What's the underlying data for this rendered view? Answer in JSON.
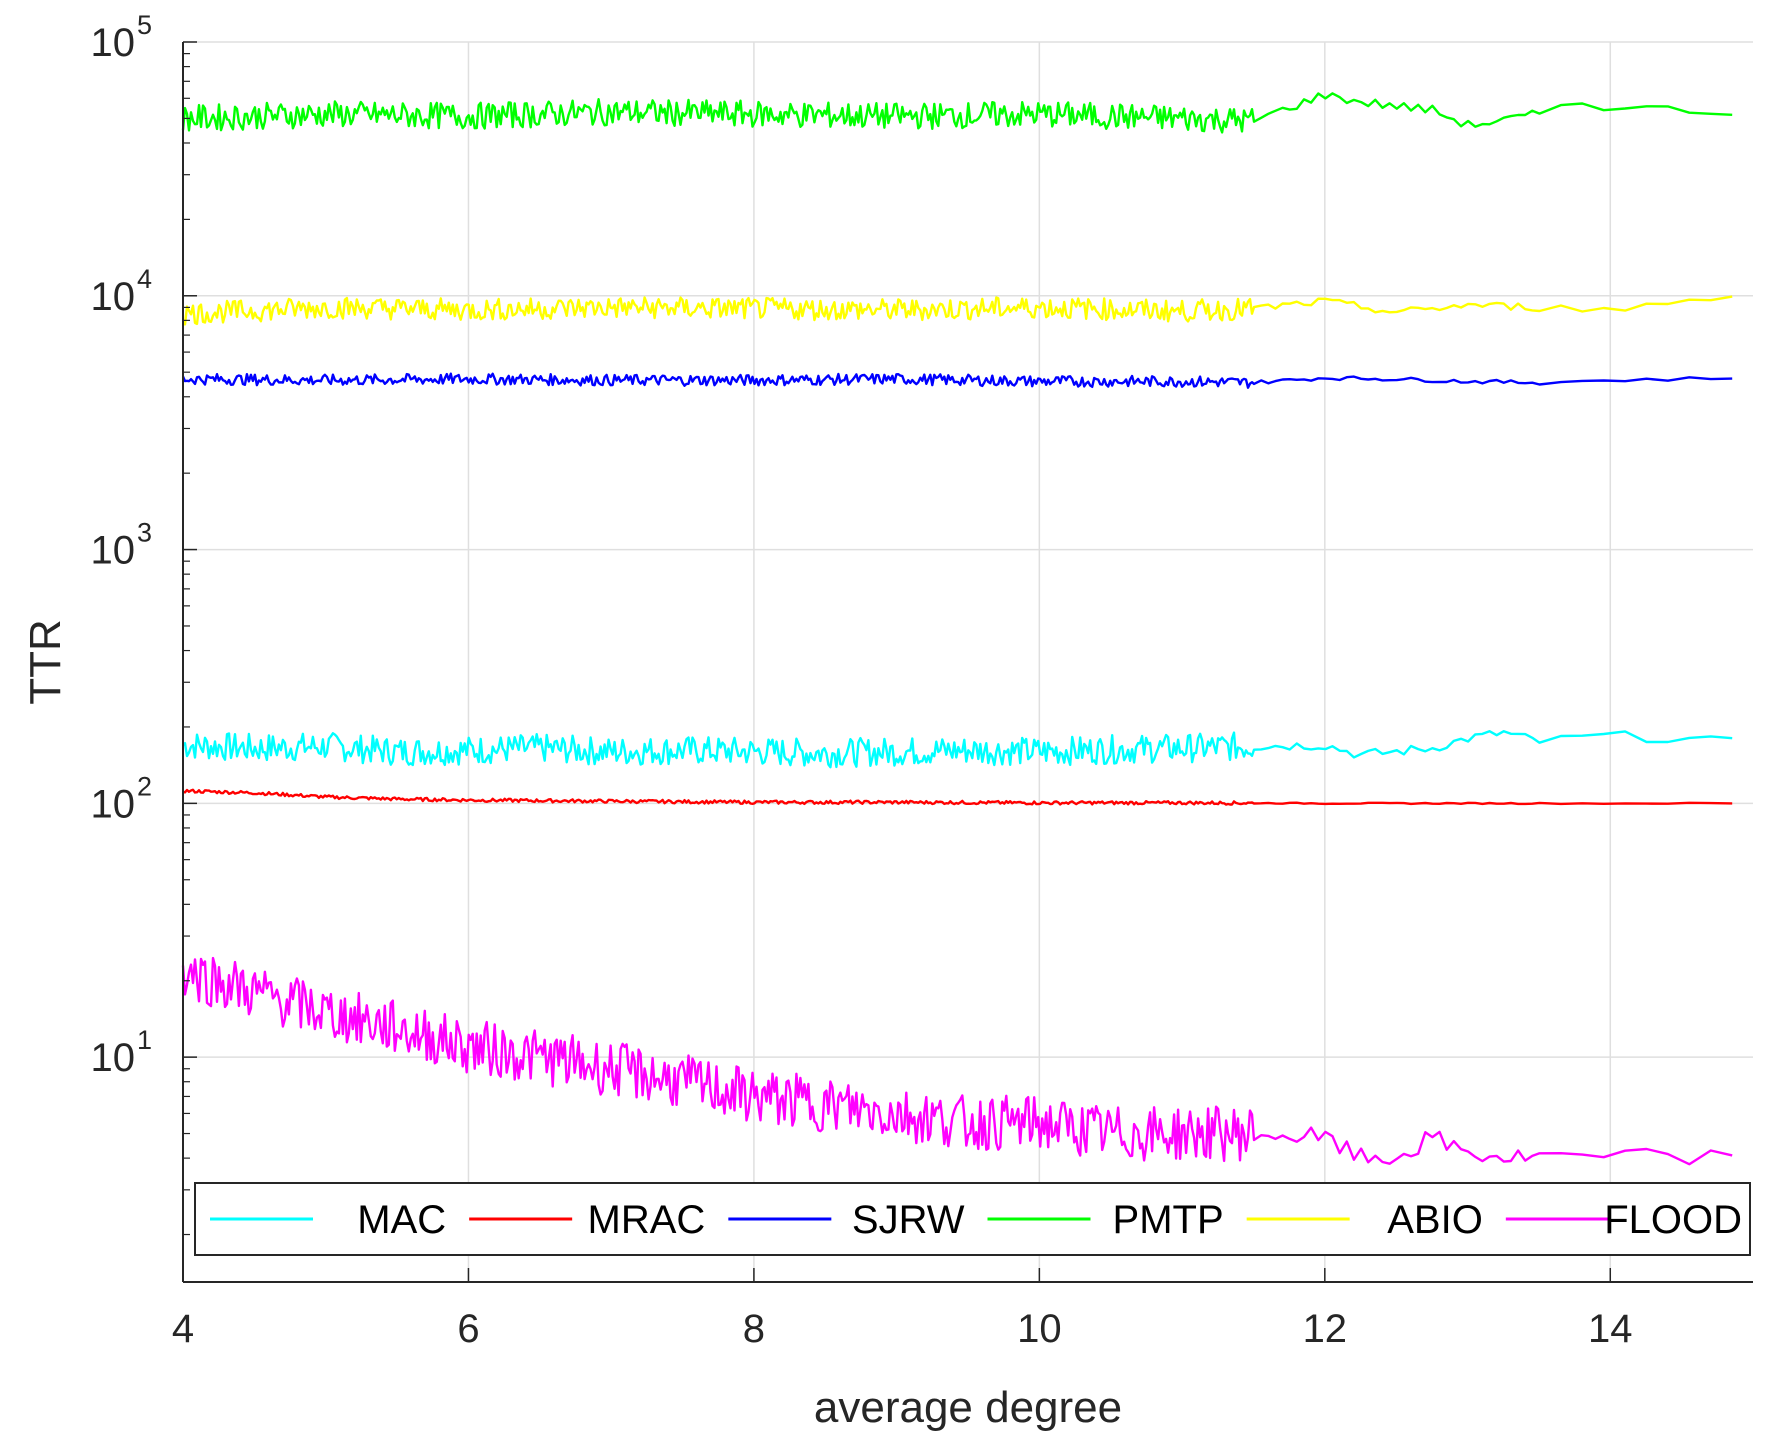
{
  "chart_data": {
    "type": "line",
    "title": "",
    "xlabel": "average degree",
    "ylabel": "TTR",
    "xlim": [
      4,
      15
    ],
    "ylim": [
      1.3,
      100000
    ],
    "yscale": "log",
    "grid": true,
    "legend": {
      "placement": "bottom",
      "orientation": "horizontal"
    },
    "x_ticks": [
      "4",
      "6",
      "8",
      "10",
      "12",
      "14"
    ],
    "x_tick_values": [
      4,
      6,
      8,
      10,
      12,
      14
    ],
    "y_ticks": [
      {
        "value": 10,
        "base": "10",
        "exp": "1"
      },
      {
        "value": 100,
        "base": "10",
        "exp": "2"
      },
      {
        "value": 1000,
        "base": "10",
        "exp": "3"
      },
      {
        "value": 10000,
        "base": "10",
        "exp": "4"
      },
      {
        "value": 100000,
        "base": "10",
        "exp": "5"
      }
    ],
    "series": [
      {
        "name": "MAC",
        "color": "#00ffff",
        "x": [
          4,
          4.5,
          5,
          5.5,
          6,
          6.5,
          7,
          7.5,
          8,
          8.5,
          9,
          9.5,
          10,
          10.5,
          11,
          11.5,
          12,
          12.25,
          12.5,
          12.75,
          13,
          13.25,
          13.5,
          14,
          14.5,
          15
        ],
        "y": [
          170,
          165,
          168,
          160,
          162,
          165,
          160,
          162,
          160,
          158,
          160,
          162,
          160,
          163,
          165,
          168,
          170,
          155,
          160,
          165,
          180,
          190,
          175,
          185,
          180,
          170
        ]
      },
      {
        "name": "MRAC",
        "color": "#ff0000",
        "x": [
          4,
          4.5,
          5,
          5.5,
          6,
          7,
          8,
          9,
          10,
          11,
          12,
          13,
          14,
          15
        ],
        "y": [
          112,
          110,
          106,
          104,
          103,
          102,
          101,
          101,
          100.5,
          100.5,
          100,
          100,
          100,
          100
        ]
      },
      {
        "name": "SJRW",
        "color": "#0000ff",
        "x": [
          4,
          5,
          6,
          7,
          8,
          9,
          10,
          11,
          11.5,
          12,
          12.5,
          13,
          13.5,
          14,
          14.5,
          15
        ],
        "y": [
          4700,
          4650,
          4700,
          4650,
          4650,
          4700,
          4600,
          4600,
          4550,
          4750,
          4700,
          4600,
          4550,
          4650,
          4700,
          4750
        ]
      },
      {
        "name": "PMTP",
        "color": "#00ff00",
        "x": [
          4,
          5,
          6,
          7,
          8,
          9,
          10,
          11,
          11.5,
          12,
          12.25,
          12.5,
          12.75,
          13,
          13.25,
          13.5,
          13.75,
          14,
          14.5,
          15
        ],
        "y": [
          50000,
          52000,
          51000,
          53000,
          52000,
          51000,
          52000,
          50000,
          49000,
          62000,
          58000,
          56000,
          54000,
          47000,
          49000,
          52000,
          60000,
          55000,
          54000,
          52000
        ]
      },
      {
        "name": "ABIO",
        "color": "#ffff00",
        "x": [
          4,
          5,
          6,
          7,
          8,
          9,
          10,
          11,
          11.5,
          12,
          12.5,
          13,
          13.5,
          14,
          14.5,
          15
        ],
        "y": [
          8500,
          9000,
          8800,
          9000,
          8900,
          8800,
          9000,
          8700,
          8900,
          9500,
          8600,
          9200,
          9000,
          8800,
          9500,
          10200
        ]
      },
      {
        "name": "FLOOD",
        "color": "#ff00ff",
        "x": [
          4,
          4.5,
          5,
          5.5,
          6,
          6.5,
          7,
          7.5,
          8,
          8.5,
          9,
          9.5,
          10,
          10.5,
          11,
          11.5,
          12,
          12.25,
          12.5,
          12.75,
          13,
          13.25,
          13.5,
          14,
          14.5,
          15
        ],
        "y": [
          22,
          18,
          15,
          13,
          11,
          10,
          9,
          8,
          7,
          6.5,
          6,
          5.5,
          5.5,
          5,
          5,
          5,
          4.8,
          4,
          4,
          4.8,
          4.2,
          4,
          4,
          4,
          4,
          4
        ]
      }
    ]
  }
}
